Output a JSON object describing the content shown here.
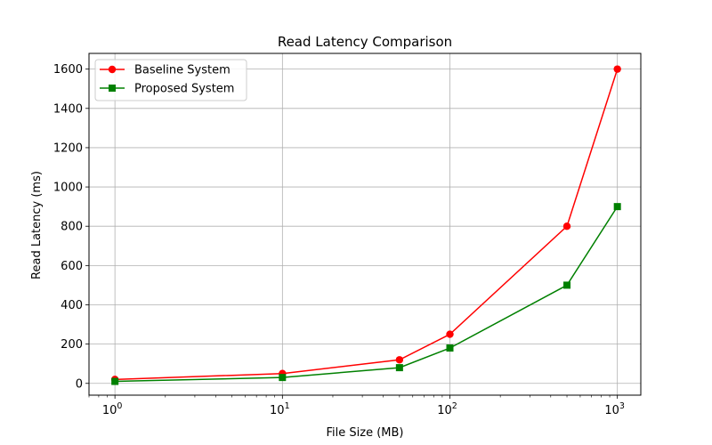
{
  "chart_data": {
    "type": "line",
    "title": "Read Latency Comparison",
    "xlabel": "File Size (MB)",
    "ylabel": "Read Latency (ms)",
    "xscale": "log",
    "xlim": [
      0.7,
      1380
    ],
    "ylim": [
      -60,
      1680
    ],
    "x": [
      1,
      10,
      50,
      100,
      500,
      1000
    ],
    "x_ticks": [
      1,
      10,
      100,
      1000
    ],
    "x_tick_labels": [
      {
        "base": "10",
        "exp": "0"
      },
      {
        "base": "10",
        "exp": "1"
      },
      {
        "base": "10",
        "exp": "2"
      },
      {
        "base": "10",
        "exp": "3"
      }
    ],
    "y_ticks": [
      0,
      200,
      400,
      600,
      800,
      1000,
      1200,
      1400,
      1600
    ],
    "y_tick_labels": [
      "0",
      "200",
      "400",
      "600",
      "800",
      "1000",
      "1200",
      "1400",
      "1600"
    ],
    "grid": true,
    "legend_position": "top-left",
    "series": [
      {
        "name": "Baseline System",
        "color": "#ff0000",
        "marker": "circle",
        "values": [
          20,
          50,
          120,
          250,
          800,
          1600
        ]
      },
      {
        "name": "Proposed System",
        "color": "#008000",
        "marker": "square",
        "values": [
          10,
          30,
          80,
          180,
          500,
          900
        ]
      }
    ]
  }
}
